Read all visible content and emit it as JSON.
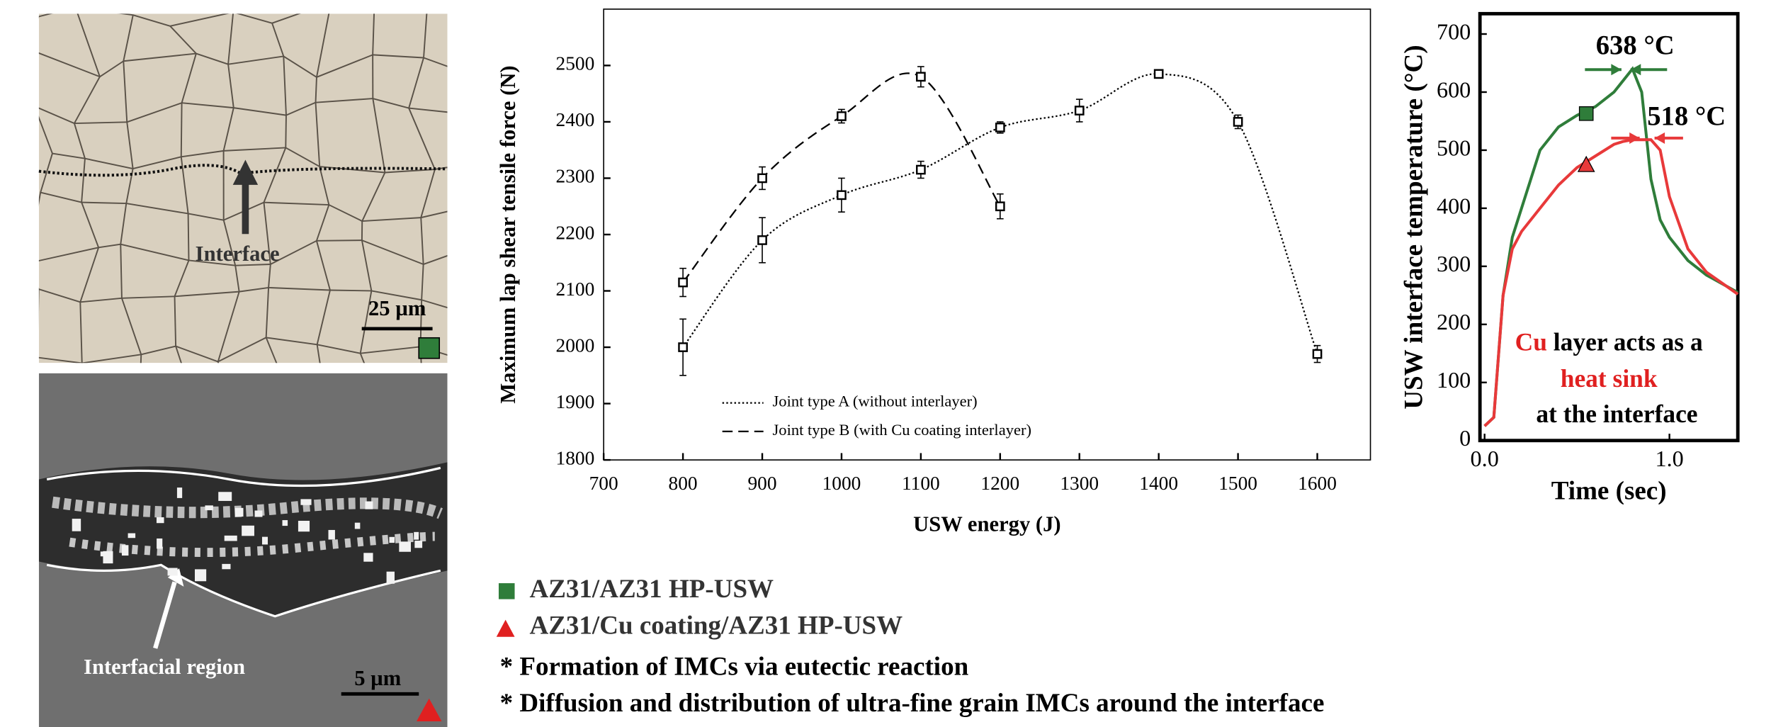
{
  "images": [
    {
      "label": "Interface",
      "scale_bar": "25 µm"
    },
    {
      "label": "Interfacial region",
      "scale_bar": "5 µm"
    }
  ],
  "chart_data": [
    {
      "type": "line",
      "xlabel": "USW energy (J)",
      "ylabel": "Maximum lap shear tensile force (N)",
      "x": [
        800,
        900,
        1000,
        1100,
        1200,
        1300,
        1400,
        1500,
        1600
      ],
      "series": [
        {
          "name": "Joint type A (without interlayer)",
          "color": "#000000",
          "style": "dotted",
          "values": [
            2000,
            2190,
            2270,
            2315,
            2390,
            2420,
            2485,
            2400,
            1988
          ],
          "errors": [
            50,
            40,
            30,
            15,
            10,
            20,
            5,
            12,
            15
          ]
        },
        {
          "name": "Joint type B (with Cu coating interlayer)",
          "color": "#000000",
          "style": "dashed",
          "values": [
            2115,
            2300,
            2410,
            2480,
            2250,
            null,
            null,
            null,
            null
          ],
          "errors": [
            25,
            20,
            12,
            18,
            22,
            null,
            null,
            null,
            null
          ]
        }
      ],
      "xlim": [
        700,
        1667
      ],
      "ylim": [
        1800,
        2600
      ],
      "xticks": [
        700,
        800,
        900,
        1000,
        1100,
        1200,
        1300,
        1400,
        1500,
        1600
      ],
      "yticks": [
        1800,
        1900,
        2000,
        2100,
        2200,
        2300,
        2400,
        2500
      ]
    },
    {
      "type": "line",
      "xlabel": "Time (sec)",
      "ylabel": "USW interface temperature (°C)",
      "x": [
        0,
        0.05,
        0.1,
        0.15,
        0.2,
        0.3,
        0.4,
        0.5,
        0.6,
        0.7,
        0.75,
        0.8,
        0.85,
        0.9,
        0.95,
        1.0,
        1.1,
        1.2,
        1.37
      ],
      "series": [
        {
          "name": "AZ31/AZ31 HP-USW",
          "color": "#2f7d3a",
          "marker": "square",
          "marker_x": 0.55,
          "marker_y": 563,
          "values": [
            25,
            40,
            250,
            350,
            400,
            500,
            540,
            560,
            575,
            600,
            620,
            640,
            600,
            450,
            380,
            350,
            310,
            285,
            255
          ]
        },
        {
          "name": "AZ31/Cu coating/AZ31 HP-USW",
          "color": "#e8393a",
          "marker": "triangle",
          "marker_x": 0.55,
          "marker_y": 475,
          "values": [
            25,
            40,
            250,
            330,
            360,
            400,
            440,
            470,
            490,
            510,
            515,
            518,
            518,
            518,
            500,
            420,
            330,
            290,
            252
          ]
        }
      ],
      "xlim": [
        -0.025,
        1.37
      ],
      "ylim": [
        0,
        735
      ],
      "xticks": [
        {
          "value": 0,
          "label": "0.0"
        },
        {
          "value": 1,
          "label": "1.0"
        }
      ],
      "yticks": [
        0,
        100,
        200,
        300,
        400,
        500,
        600,
        700
      ],
      "annotations": [
        "638 °C",
        "518 °C"
      ],
      "note": [
        "Cu",
        " layer acts as a",
        "heat sink",
        "at the interface"
      ]
    }
  ],
  "notes": [
    "* Formation of IMCs via eutectic reaction",
    "* Diffusion and distribution of ultra-fine grain IMCs around the interface"
  ]
}
